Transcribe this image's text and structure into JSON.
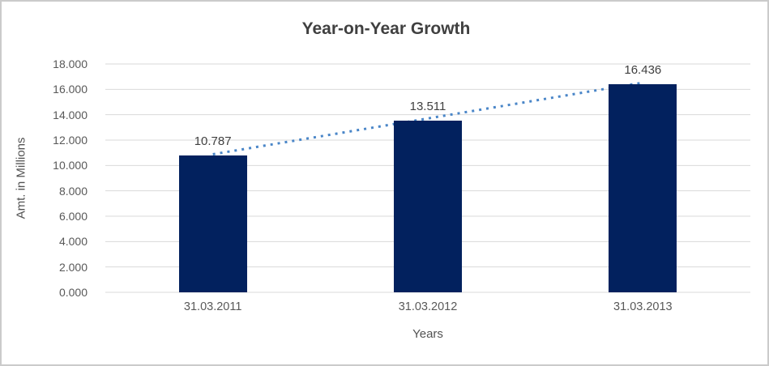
{
  "chart": {
    "title": "Year-on-Year Growth",
    "y_axis_title": "Amt. in Millions",
    "x_axis_title": "Years"
  },
  "chart_data": {
    "type": "bar",
    "title": "Year-on-Year Growth",
    "xlabel": "Years",
    "ylabel": "Amt. in Millions",
    "categories": [
      "31.03.2011",
      "31.03.2012",
      "31.03.2013"
    ],
    "values": [
      10.787,
      13.511,
      16.436
    ],
    "data_labels": [
      "10.787",
      "13.511",
      "16.436"
    ],
    "y_ticks": [
      "0.000",
      "2.000",
      "4.000",
      "6.000",
      "8.000",
      "10.000",
      "12.000",
      "14.000",
      "16.000",
      "18.000"
    ],
    "ylim": [
      0,
      18
    ],
    "grid": true,
    "legend": "none",
    "trendline": {
      "type": "linear",
      "style": "dotted",
      "endpoint_values": [
        10.754,
        16.403
      ]
    },
    "colors": {
      "bar": "#02215E",
      "gridline": "#D9D9D9",
      "trendline": "#4A86C8",
      "tick_text": "#595959",
      "title_text": "#404040",
      "border": "#CBCBCB"
    }
  }
}
